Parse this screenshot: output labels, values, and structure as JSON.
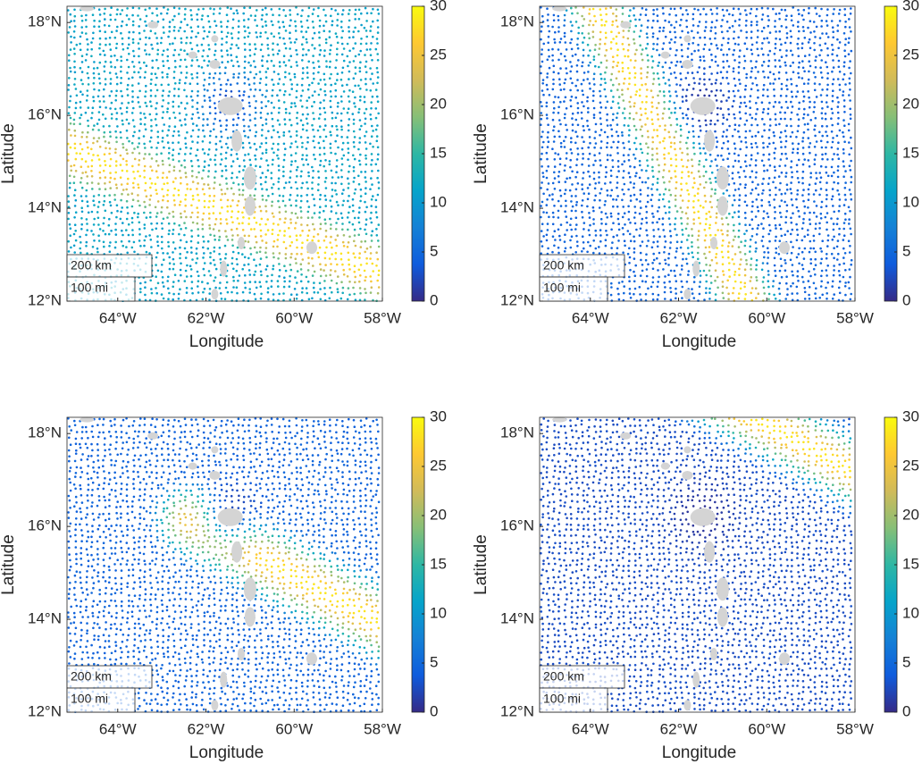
{
  "colormap": "parula",
  "panels": [
    {
      "xlabel": "Longitude",
      "ylabel": "Latitude",
      "xlim": [
        -65.15,
        -58
      ],
      "ylim": [
        12,
        18.35
      ],
      "xticks": [
        {
          "value": -64,
          "label": "64°W"
        },
        {
          "value": -62,
          "label": "62°W"
        },
        {
          "value": -60,
          "label": "60°W"
        },
        {
          "value": -58,
          "label": "58°W"
        }
      ],
      "yticks": [
        {
          "value": 12,
          "label": "12°N"
        },
        {
          "value": 14,
          "label": "14°N"
        },
        {
          "value": 16,
          "label": "16°N"
        },
        {
          "value": 18,
          "label": "18°N"
        }
      ],
      "colorbar": {
        "lim": [
          0,
          30
        ],
        "ticks": [
          0,
          5,
          10,
          15,
          20,
          25,
          30
        ]
      },
      "scale_bar": [
        "200 km",
        "100 mi"
      ]
    },
    {
      "xlabel": "Longitude",
      "ylabel": "Latitude",
      "xlim": [
        -65.15,
        -58
      ],
      "ylim": [
        12,
        18.35
      ],
      "xticks": [
        {
          "value": -64,
          "label": "64°W"
        },
        {
          "value": -62,
          "label": "62°W"
        },
        {
          "value": -60,
          "label": "60°W"
        },
        {
          "value": -58,
          "label": "58°W"
        }
      ],
      "yticks": [
        {
          "value": 12,
          "label": "12°N"
        },
        {
          "value": 14,
          "label": "14°N"
        },
        {
          "value": 16,
          "label": "16°N"
        },
        {
          "value": 18,
          "label": "18°N"
        }
      ],
      "colorbar": {
        "lim": [
          0,
          30
        ],
        "ticks": [
          0,
          5,
          10,
          15,
          20,
          25,
          30
        ]
      },
      "scale_bar": [
        "200 km",
        "100 mi"
      ]
    },
    {
      "xlabel": "Longitude",
      "ylabel": "Latitude",
      "xlim": [
        -65.15,
        -58
      ],
      "ylim": [
        12,
        18.35
      ],
      "xticks": [
        {
          "value": -64,
          "label": "64°W"
        },
        {
          "value": -62,
          "label": "62°W"
        },
        {
          "value": -60,
          "label": "60°W"
        },
        {
          "value": -58,
          "label": "58°W"
        }
      ],
      "yticks": [
        {
          "value": 12,
          "label": "12°N"
        },
        {
          "value": 14,
          "label": "14°N"
        },
        {
          "value": 16,
          "label": "16°N"
        },
        {
          "value": 18,
          "label": "18°N"
        }
      ],
      "colorbar": {
        "lim": [
          0,
          30
        ],
        "ticks": [
          0,
          5,
          10,
          15,
          20,
          25,
          30
        ]
      },
      "scale_bar": [
        "200 km",
        "100 mi"
      ]
    },
    {
      "xlabel": "Longitude",
      "ylabel": "Latitude",
      "xlim": [
        -65.15,
        -58
      ],
      "ylim": [
        12,
        18.35
      ],
      "xticks": [
        {
          "value": -64,
          "label": "64°W"
        },
        {
          "value": -62,
          "label": "62°W"
        },
        {
          "value": -60,
          "label": "60°W"
        },
        {
          "value": -58,
          "label": "58°W"
        }
      ],
      "yticks": [
        {
          "value": 12,
          "label": "12°N"
        },
        {
          "value": 14,
          "label": "14°N"
        },
        {
          "value": 16,
          "label": "16°N"
        },
        {
          "value": 18,
          "label": "18°N"
        }
      ],
      "colorbar": {
        "lim": [
          0,
          30
        ],
        "ticks": [
          0,
          5,
          10,
          15,
          20,
          25,
          30
        ]
      },
      "scale_bar": [
        "200 km",
        "100 mi"
      ]
    }
  ]
}
